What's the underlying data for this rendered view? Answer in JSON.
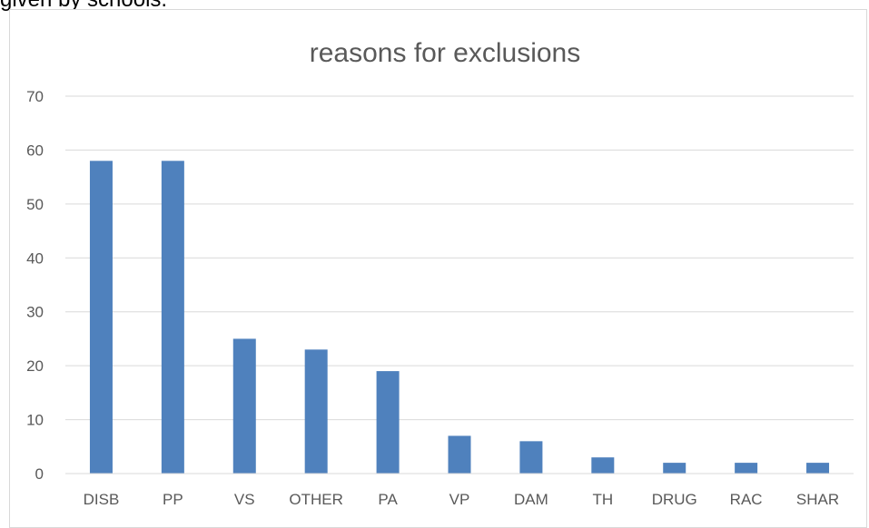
{
  "page_text": {
    "caption_fragment": "given by schools."
  },
  "chart_data": {
    "type": "bar",
    "title": "reasons for exclusions",
    "xlabel": "",
    "ylabel": "",
    "categories": [
      "DISB",
      "PP",
      "VS",
      "OTHER",
      "PA",
      "VP",
      "DAM",
      "TH",
      "DRUG",
      "RAC",
      "SHAR"
    ],
    "values": [
      58,
      58,
      25,
      23,
      19,
      7,
      6,
      3,
      2,
      2,
      2
    ],
    "ylim": [
      0,
      70
    ],
    "yticks": [
      0,
      10,
      20,
      30,
      40,
      50,
      60,
      70
    ],
    "grid": true,
    "legend": "none",
    "colors": {
      "bar": "#4f81bd",
      "grid": "#d9d9d9",
      "axis": "#d9d9d9",
      "text": "#595959"
    }
  }
}
